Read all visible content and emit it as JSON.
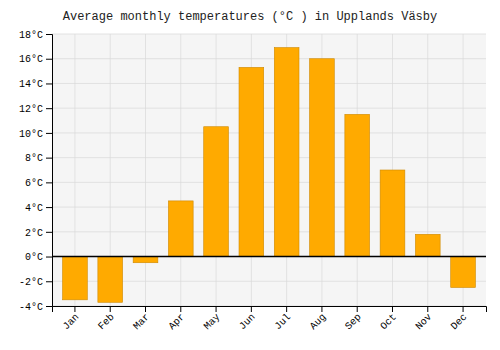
{
  "chart_data": {
    "type": "bar",
    "title": "Average monthly temperatures (°C ) in Upplands Väsby",
    "categories": [
      "Jan",
      "Feb",
      "Mar",
      "Apr",
      "May",
      "Jun",
      "Jul",
      "Aug",
      "Sep",
      "Oct",
      "Nov",
      "Dec"
    ],
    "values": [
      -3.5,
      -3.7,
      -0.5,
      4.5,
      10.5,
      15.3,
      16.9,
      16.0,
      11.5,
      7.0,
      1.8,
      -2.5
    ],
    "color": "#FFAA00",
    "ylim": [
      -4,
      18
    ],
    "yticks": [
      {
        "value": -4,
        "label": "-4°C"
      },
      {
        "value": -2,
        "label": "-2°C"
      },
      {
        "value": 0,
        "label": "0°C"
      },
      {
        "value": 2,
        "label": "2°C"
      },
      {
        "value": 4,
        "label": "4°C"
      },
      {
        "value": 6,
        "label": "6°C"
      },
      {
        "value": 8,
        "label": "8°C"
      },
      {
        "value": 10,
        "label": "10°C"
      },
      {
        "value": 12,
        "label": "12°C"
      },
      {
        "value": 14,
        "label": "14°C"
      },
      {
        "value": 16,
        "label": "16°C"
      },
      {
        "value": 18,
        "label": "18°C"
      }
    ],
    "grid": true
  }
}
